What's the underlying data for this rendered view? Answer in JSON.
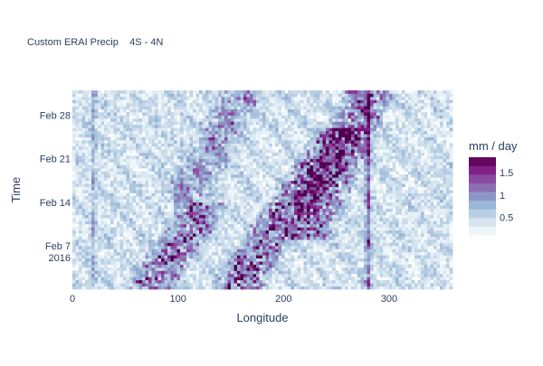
{
  "chart_data": {
    "type": "heatmap",
    "title": "Custom ERAI Precip    4S - 4N",
    "xlabel": "Longitude",
    "ylabel": "Time",
    "xlim": [
      0,
      360
    ],
    "x_ticks": [
      "0",
      "100",
      "200",
      "300"
    ],
    "x_tick_values": [
      0,
      100,
      200,
      300
    ],
    "y_start": "2016-01-31",
    "y_end": "2016-03-03",
    "y_ticks": [
      {
        "label": "Feb 28",
        "date": "2016-02-28"
      },
      {
        "label": "Feb 21",
        "date": "2016-02-21"
      },
      {
        "label": "Feb 14",
        "date": "2016-02-14"
      },
      {
        "label": "Feb 7",
        "sub": "2016",
        "date": "2016-02-07"
      }
    ],
    "colorbar": {
      "title": "mm / day",
      "tick_labels": [
        "1.5",
        "1",
        "0.5"
      ],
      "tick_values": [
        1.5,
        1.0,
        0.5
      ],
      "zmin": 0.1,
      "zmax": 1.85,
      "colors": [
        "#f7fcfd",
        "#e0ecf4",
        "#bfd3e6",
        "#9ebcda",
        "#8c96c6",
        "#8c6bb1",
        "#88419d",
        "#810f7c",
        "#4d004b"
      ]
    },
    "features": {
      "background_level": 0.05,
      "propagating_bands": [
        {
          "lon_start": 160,
          "date_start": "2016-02-02",
          "lon_end": 250,
          "date_end": "2016-02-24",
          "peak": 1.85
        },
        {
          "lon_start": 75,
          "date_start": "2016-02-01",
          "lon_end": 120,
          "date_end": "2016-02-12",
          "peak": 1.7
        },
        {
          "lon_start": 225,
          "date_start": "2016-02-10",
          "lon_end": 280,
          "date_end": "2016-03-02",
          "peak": 1.6
        },
        {
          "lon_start": 110,
          "date_start": "2016-02-16",
          "lon_end": 160,
          "date_end": "2016-03-02",
          "peak": 0.9
        }
      ],
      "stationary_lines": [
        {
          "lon": 280,
          "peak": 1.3
        },
        {
          "lon": 20,
          "peak": 0.6
        }
      ]
    }
  }
}
